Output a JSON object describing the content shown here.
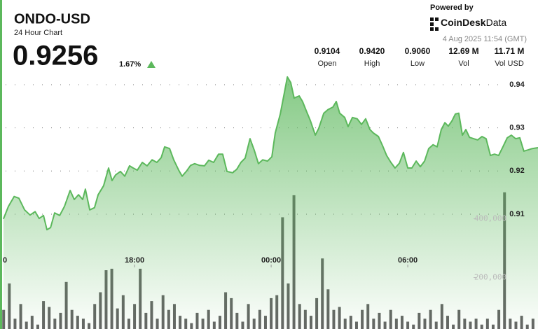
{
  "header": {
    "ticker": "ONDO-USD",
    "subtitle": "24 Hour Chart",
    "price": "0.9256",
    "change": "1.67%",
    "powered_by": "Powered by",
    "brand_bold": "CoinDesk",
    "brand_light": "Data",
    "timestamp": "4 Aug 2025 11:54 (GMT)",
    "stats": [
      {
        "value": "0.9104",
        "label": "Open"
      },
      {
        "value": "0.9420",
        "label": "High"
      },
      {
        "value": "0.9060",
        "label": "Low"
      },
      {
        "value": "12.69 M",
        "label": "Vol"
      },
      {
        "value": "11.71 M",
        "label": "Vol USD"
      }
    ]
  },
  "chart_data": {
    "type": "line",
    "grid": true,
    "xlim": [
      12.09,
      35.72
    ],
    "xticks": [
      {
        "value": 12,
        "label": "0"
      },
      {
        "value": 18,
        "label": "18:00"
      },
      {
        "value": 24,
        "label": "00:00"
      },
      {
        "value": 30,
        "label": "06:00"
      }
    ],
    "ylim": [
      0.8834,
      0.9434
    ],
    "yticks": [
      0.91,
      0.92,
      0.93,
      0.94
    ],
    "y2lim": [
      25000,
      906000
    ],
    "y2ticks": [
      {
        "value": 200000,
        "label": "200,000"
      },
      {
        "value": 400000,
        "label": "400,000"
      }
    ],
    "series": [
      {
        "type": "area",
        "color": "#5cb85c",
        "x": [
          12.24,
          12.46,
          12.71,
          12.92,
          13.17,
          13.41,
          13.63,
          13.81,
          14.0,
          14.15,
          14.31,
          14.49,
          14.71,
          14.92,
          15.17,
          15.35,
          15.54,
          15.72,
          15.84,
          16.03,
          16.24,
          16.4,
          16.64,
          16.86,
          17.01,
          17.17,
          17.38,
          17.57,
          17.78,
          17.94,
          18.12,
          18.34,
          18.55,
          18.77,
          18.98,
          19.17,
          19.32,
          19.54,
          19.72,
          19.94,
          20.09,
          20.27,
          20.46,
          20.64,
          20.86,
          21.07,
          21.26,
          21.47,
          21.69,
          21.87,
          22.06,
          22.31,
          22.49,
          22.67,
          22.86,
          23.07,
          23.26,
          23.44,
          23.63,
          23.84,
          24.03,
          24.18,
          24.4,
          24.58,
          24.71,
          24.86,
          25.01,
          25.23,
          25.38,
          25.54,
          25.72,
          25.94,
          26.09,
          26.31,
          26.49,
          26.71,
          26.86,
          27.01,
          27.23,
          27.38,
          27.57,
          27.78,
          27.97,
          28.15,
          28.34,
          28.49,
          28.71,
          28.89,
          29.07,
          29.26,
          29.44,
          29.63,
          29.81,
          30.0,
          30.18,
          30.37,
          30.55,
          30.74,
          30.92,
          31.11,
          31.29,
          31.47,
          31.63,
          31.78,
          31.94,
          32.09,
          32.24,
          32.4,
          32.55,
          32.71,
          32.89,
          33.07,
          33.26,
          33.44,
          33.63,
          33.81,
          33.99,
          34.18,
          34.37,
          34.55,
          34.74,
          34.92,
          35.1,
          35.29,
          35.47,
          35.72
        ],
        "values": [
          0.9089,
          0.9118,
          0.9141,
          0.9137,
          0.911,
          0.9098,
          0.9106,
          0.909,
          0.9097,
          0.9064,
          0.9069,
          0.9103,
          0.9097,
          0.9118,
          0.9155,
          0.9134,
          0.9145,
          0.9134,
          0.9158,
          0.911,
          0.9115,
          0.9145,
          0.9166,
          0.9207,
          0.9178,
          0.9191,
          0.9199,
          0.9188,
          0.9212,
          0.9207,
          0.9202,
          0.922,
          0.9212,
          0.9226,
          0.922,
          0.9231,
          0.9256,
          0.9252,
          0.9226,
          0.9202,
          0.9188,
          0.9199,
          0.9213,
          0.9217,
          0.9213,
          0.9212,
          0.9225,
          0.922,
          0.9239,
          0.9239,
          0.9199,
          0.9196,
          0.9204,
          0.922,
          0.923,
          0.9275,
          0.9248,
          0.9217,
          0.9226,
          0.9223,
          0.9233,
          0.9288,
          0.9332,
          0.9381,
          0.9418,
          0.9405,
          0.9369,
          0.9374,
          0.9361,
          0.934,
          0.9317,
          0.9283,
          0.9299,
          0.9334,
          0.9342,
          0.9348,
          0.9361,
          0.9334,
          0.9324,
          0.9303,
          0.9324,
          0.9321,
          0.9308,
          0.9321,
          0.9296,
          0.9288,
          0.928,
          0.9259,
          0.9236,
          0.922,
          0.9207,
          0.9218,
          0.9243,
          0.9207,
          0.9207,
          0.9223,
          0.921,
          0.9223,
          0.9252,
          0.9261,
          0.9256,
          0.9296,
          0.9312,
          0.9304,
          0.9316,
          0.9332,
          0.9334,
          0.9283,
          0.9296,
          0.9278,
          0.9275,
          0.9272,
          0.928,
          0.9275,
          0.9236,
          0.9239,
          0.9236,
          0.9256,
          0.9277,
          0.9283,
          0.9275,
          0.9277,
          0.9246,
          0.9249,
          0.9252,
          0.9254
        ]
      },
      {
        "type": "bar",
        "axis": "y2",
        "color": "#4a4a4a",
        "x": [
          12.25,
          12.5,
          12.75,
          13,
          13.25,
          13.5,
          13.75,
          14,
          14.25,
          14.5,
          14.75,
          15,
          15.25,
          15.5,
          15.75,
          16,
          16.25,
          16.5,
          16.75,
          17,
          17.25,
          17.5,
          17.75,
          18,
          18.25,
          18.5,
          18.75,
          19,
          19.25,
          19.5,
          19.75,
          20,
          20.25,
          20.5,
          20.75,
          21,
          21.25,
          21.5,
          21.75,
          22,
          22.25,
          22.5,
          22.75,
          23,
          23.25,
          23.5,
          23.75,
          24,
          24.25,
          24.5,
          24.75,
          25,
          25.25,
          25.5,
          25.75,
          26,
          26.25,
          26.5,
          26.75,
          27,
          27.25,
          27.5,
          27.75,
          28,
          28.25,
          28.5,
          28.75,
          29,
          29.25,
          29.5,
          29.75,
          30,
          30.25,
          30.5,
          30.75,
          31,
          31.25,
          31.5,
          31.75,
          32,
          32.25,
          32.5,
          32.75,
          33,
          33.25,
          33.5,
          33.75,
          34,
          34.25,
          34.5,
          34.75,
          35,
          35.25,
          35.5
        ],
        "values": [
          90000,
          180000,
          60000,
          110000,
          50000,
          70000,
          40000,
          120000,
          100000,
          60000,
          80000,
          185000,
          90000,
          70000,
          60000,
          45000,
          110000,
          150000,
          225000,
          230000,
          95000,
          140000,
          60000,
          110000,
          230000,
          80000,
          120000,
          60000,
          140000,
          90000,
          110000,
          70000,
          60000,
          45000,
          80000,
          60000,
          90000,
          50000,
          70000,
          150000,
          130000,
          80000,
          50000,
          110000,
          60000,
          90000,
          70000,
          130000,
          140000,
          405000,
          180000,
          480000,
          110000,
          90000,
          70000,
          130000,
          265000,
          160000,
          90000,
          100000,
          60000,
          70000,
          50000,
          90000,
          110000,
          60000,
          80000,
          50000,
          90000,
          60000,
          70000,
          50000,
          40000,
          80000,
          60000,
          90000,
          50000,
          110000,
          70000,
          40000,
          90000,
          60000,
          50000,
          60000,
          40000,
          60000,
          40000,
          90000,
          490000,
          60000,
          50000,
          70000,
          40000,
          60000
        ]
      }
    ]
  }
}
